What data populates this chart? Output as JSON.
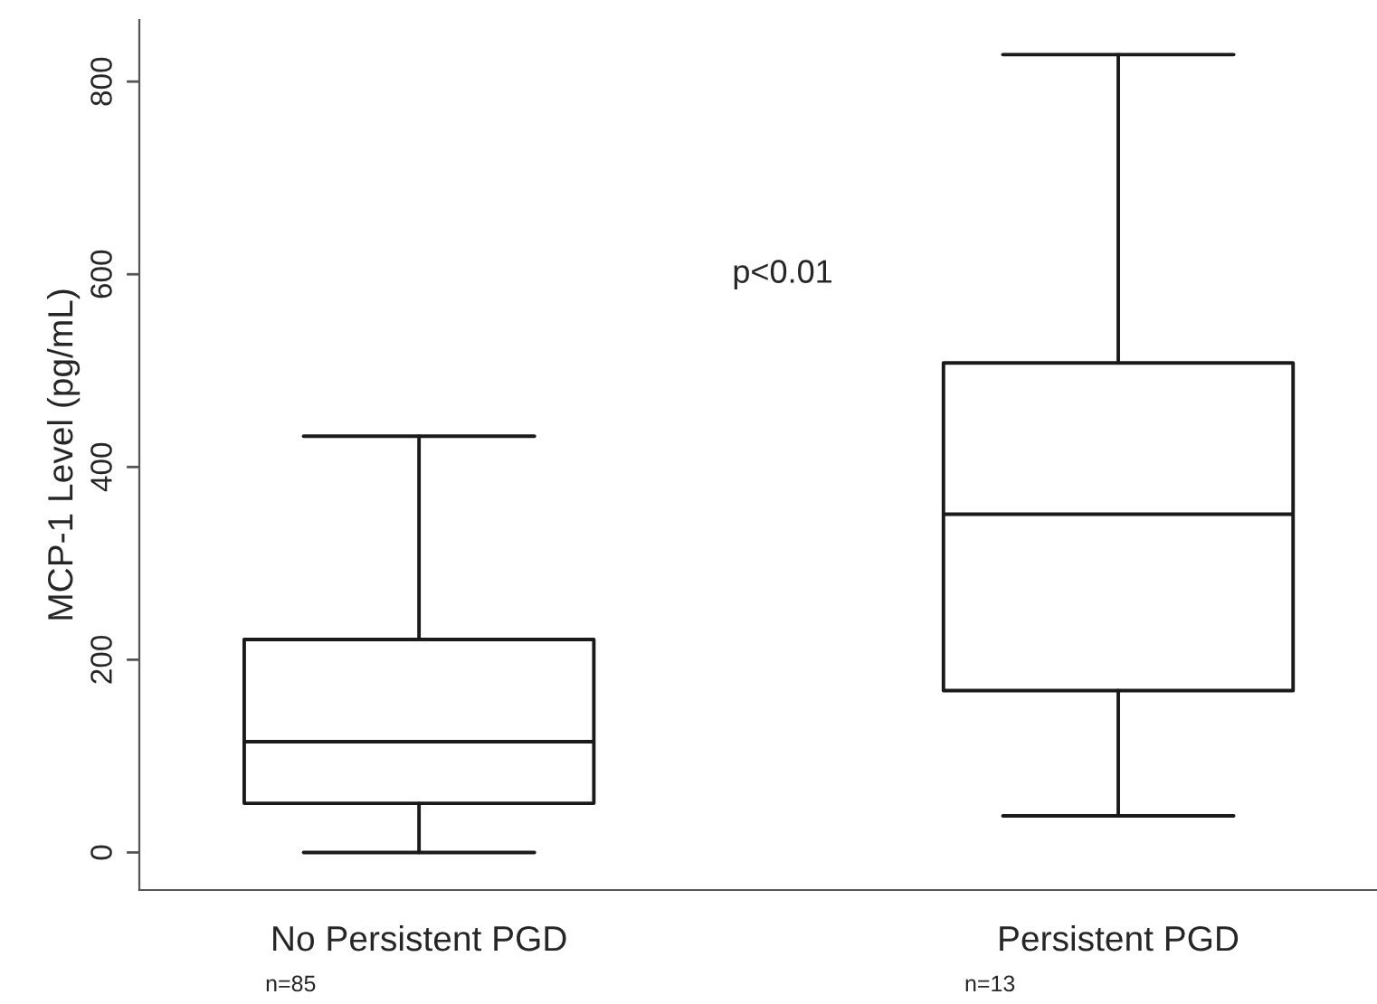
{
  "chart_data": {
    "type": "box",
    "ylabel": "MCP-1 Level (pg/mL)",
    "categories": [
      "No Persistent PGD",
      "Persistent PGD"
    ],
    "boxes": [
      {
        "low": 0,
        "q1": 51,
        "median": 115,
        "q3": 221,
        "high": 432
      },
      {
        "low": 38,
        "q1": 168,
        "median": 351,
        "q3": 508,
        "high": 828
      }
    ],
    "ylim": [
      -39,
      864
    ],
    "yticks": [
      0,
      200,
      400,
      600,
      800
    ],
    "grid": false,
    "annotations": [
      "p<0.01",
      "n=85",
      "n=13"
    ]
  }
}
